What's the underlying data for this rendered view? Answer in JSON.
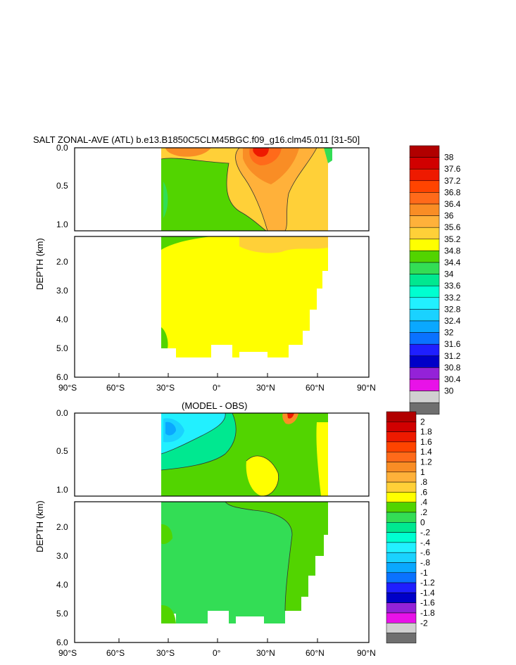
{
  "chart_data": [
    {
      "type": "heatmap",
      "title": "SALT ZONAL-AVE (ATL) b.e13.B1850C5CLM45BGC.f09_g16.clm45.011 [31-50]",
      "ylabel": "DEPTH (km)",
      "xlabel": "",
      "x_ticks": [
        "90°S",
        "60°S",
        "30°S",
        "0°",
        "30°N",
        "60°N",
        "90°N"
      ],
      "y_ticks_upper": [
        "0.0",
        "0.5",
        "1.0"
      ],
      "y_ticks_lower": [
        "2.0",
        "3.0",
        "4.0",
        "5.0",
        "6.0"
      ],
      "xlim": [
        -90,
        90
      ],
      "ylim": [
        6.0,
        0.0
      ],
      "colorbar_levels": [
        "38",
        "37.6",
        "37.2",
        "36.8",
        "36.4",
        "36",
        "35.6",
        "35.2",
        "34.8",
        "34.4",
        "34",
        "33.6",
        "33.2",
        "32.8",
        "32.4",
        "32",
        "31.6",
        "31.2",
        "30.8",
        "30.4",
        "30"
      ],
      "colorbar_colors": [
        "#b10000",
        "#d10000",
        "#ee1a00",
        "#ff4400",
        "#ff6a1a",
        "#f98d25",
        "#ffb13a",
        "#ffd038",
        "#ffff00",
        "#52d400",
        "#33dd55",
        "#00e890",
        "#00ffd0",
        "#22f0ff",
        "#1ad2ff",
        "#0aa8ff",
        "#0a72ff",
        "#1f1fff",
        "#0000c8",
        "#9422d8",
        "#e812e8",
        "#d0d0d0",
        "#6f6f6f"
      ]
    },
    {
      "type": "heatmap",
      "title": "(MODEL - OBS)",
      "ylabel": "DEPTH (km)",
      "xlabel": "",
      "x_ticks": [
        "90°S",
        "60°S",
        "30°S",
        "0°",
        "30°N",
        "60°N",
        "90°N"
      ],
      "y_ticks_upper": [
        "0.0",
        "0.5",
        "1.0"
      ],
      "y_ticks_lower": [
        "2.0",
        "3.0",
        "4.0",
        "5.0",
        "6.0"
      ],
      "xlim": [
        -90,
        90
      ],
      "ylim": [
        6.0,
        0.0
      ],
      "colorbar_levels": [
        "2",
        "1.8",
        "1.6",
        "1.4",
        "1.2",
        "1",
        ".8",
        ".6",
        ".4",
        ".2",
        "0",
        "-.2",
        "-.4",
        "-.6",
        "-.8",
        "-1",
        "-1.2",
        "-1.4",
        "-1.6",
        "-1.8",
        "-2"
      ],
      "colorbar_colors": [
        "#b10000",
        "#d10000",
        "#ee1a00",
        "#ff4400",
        "#ff6a1a",
        "#f98d25",
        "#ffb13a",
        "#ffd038",
        "#ffff00",
        "#52d400",
        "#33dd55",
        "#00e890",
        "#00ffd0",
        "#22f0ff",
        "#1ad2ff",
        "#0aa8ff",
        "#0a72ff",
        "#1f1fff",
        "#0000c8",
        "#9422d8",
        "#e812e8",
        "#d0d0d0",
        "#6f6f6f"
      ]
    }
  ]
}
